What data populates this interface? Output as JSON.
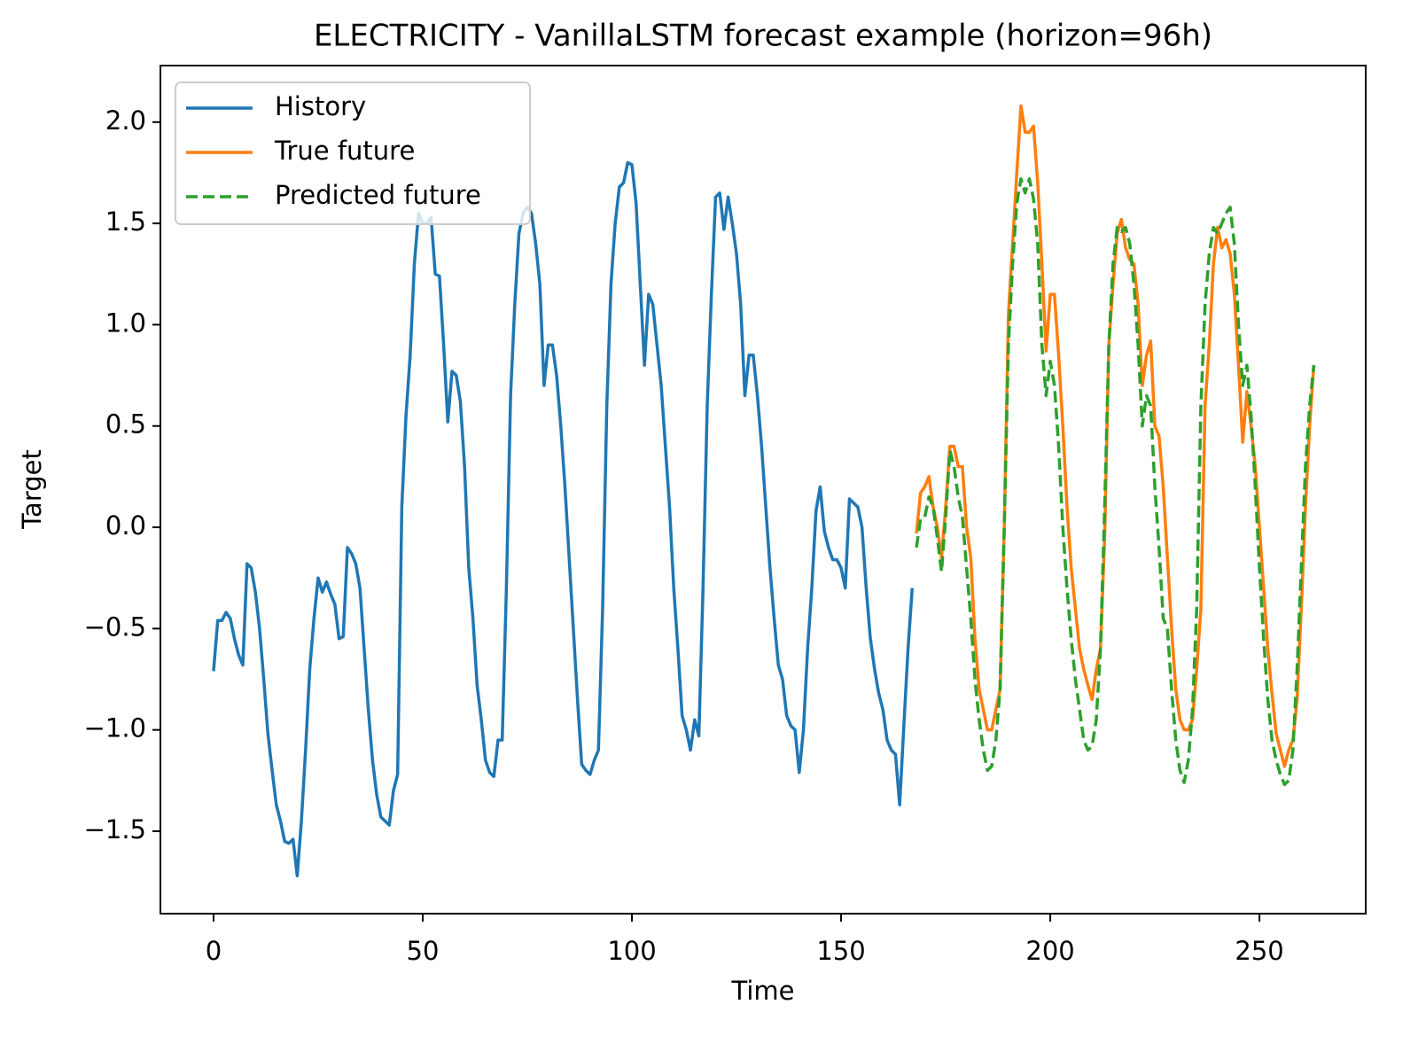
{
  "chart_data": {
    "type": "line",
    "title": "ELECTRICITY - VanillaLSTM forecast example (horizon=96h)",
    "x_label": "Time",
    "y_label": "Target",
    "xlim": [
      -12.7,
      275.4
    ],
    "ylim": [
      -1.907,
      2.279
    ],
    "xticks": [
      0,
      50,
      100,
      150,
      200,
      250
    ],
    "yticks": [
      {
        "value": -1.5,
        "label": "−1.5"
      },
      {
        "value": -1.0,
        "label": "−1.0"
      },
      {
        "value": -0.5,
        "label": "−0.5"
      },
      {
        "value": 0.0,
        "label": "0.0"
      },
      0.5,
      {
        "value": 1.0,
        "label": "1.0"
      },
      1.5,
      {
        "value": 2.0,
        "label": "2.0"
      }
    ],
    "grid": false,
    "legend": "upper left",
    "series": [
      {
        "name": "History",
        "color": "#1f77b4",
        "dash": "solid",
        "x": [
          0,
          1,
          2,
          3,
          4,
          5,
          6,
          7,
          8,
          9,
          10,
          11,
          12,
          13,
          14,
          15,
          16,
          17,
          18,
          19,
          20,
          21,
          22,
          23,
          24,
          25,
          26,
          27,
          28,
          29,
          30,
          31,
          32,
          33,
          34,
          35,
          36,
          37,
          38,
          39,
          40,
          41,
          42,
          43,
          44,
          45,
          46,
          47,
          48,
          49,
          50,
          51,
          52,
          53,
          54,
          55,
          56,
          57,
          58,
          59,
          60,
          61,
          62,
          63,
          64,
          65,
          66,
          67,
          68,
          69,
          70,
          71,
          72,
          73,
          74,
          75,
          76,
          77,
          78,
          79,
          80,
          81,
          82,
          83,
          84,
          85,
          86,
          87,
          88,
          89,
          90,
          91,
          92,
          93,
          94,
          95,
          96,
          97,
          98,
          99,
          100,
          101,
          102,
          103,
          104,
          105,
          106,
          107,
          108,
          109,
          110,
          111,
          112,
          113,
          114,
          115,
          116,
          117,
          118,
          119,
          120,
          121,
          122,
          123,
          124,
          125,
          126,
          127,
          128,
          129,
          130,
          131,
          132,
          133,
          134,
          135,
          136,
          137,
          138,
          139,
          140,
          141,
          142,
          143,
          144,
          145,
          146,
          147,
          148,
          149,
          150,
          151,
          152,
          153,
          154,
          155,
          156,
          157,
          158,
          159,
          160,
          161,
          162,
          163,
          164,
          165,
          166,
          167
        ],
        "values": [
          -0.71,
          -0.46,
          -0.46,
          -0.42,
          -0.45,
          -0.55,
          -0.63,
          -0.68,
          -0.18,
          -0.2,
          -0.32,
          -0.5,
          -0.75,
          -1.02,
          -1.2,
          -1.37,
          -1.45,
          -1.55,
          -1.56,
          -1.54,
          -1.72,
          -1.45,
          -1.1,
          -0.7,
          -0.45,
          -0.25,
          -0.32,
          -0.27,
          -0.33,
          -0.38,
          -0.55,
          -0.54,
          -0.1,
          -0.13,
          -0.18,
          -0.3,
          -0.6,
          -0.9,
          -1.15,
          -1.32,
          -1.43,
          -1.45,
          -1.47,
          -1.3,
          -1.22,
          0.1,
          0.55,
          0.85,
          1.3,
          1.55,
          1.5,
          1.5,
          1.53,
          1.25,
          1.24,
          0.9,
          0.52,
          0.77,
          0.75,
          0.62,
          0.3,
          -0.2,
          -0.45,
          -0.78,
          -0.95,
          -1.15,
          -1.21,
          -1.23,
          -1.05,
          -1.05,
          -0.3,
          0.65,
          1.1,
          1.45,
          1.55,
          1.58,
          1.55,
          1.4,
          1.2,
          0.7,
          0.9,
          0.9,
          0.75,
          0.5,
          0.2,
          -0.15,
          -0.5,
          -0.85,
          -1.17,
          -1.2,
          -1.22,
          -1.15,
          -1.1,
          -0.4,
          0.6,
          1.2,
          1.5,
          1.68,
          1.7,
          1.8,
          1.79,
          1.6,
          1.2,
          0.8,
          1.15,
          1.1,
          0.9,
          0.7,
          0.4,
          0.1,
          -0.3,
          -0.6,
          -0.93,
          -1.0,
          -1.1,
          -0.95,
          -1.03,
          -0.3,
          0.6,
          1.15,
          1.63,
          1.65,
          1.47,
          1.63,
          1.5,
          1.35,
          1.1,
          0.65,
          0.85,
          0.85,
          0.65,
          0.4,
          0.1,
          -0.2,
          -0.45,
          -0.68,
          -0.75,
          -0.93,
          -0.98,
          -1.0,
          -1.21,
          -1.0,
          -0.6,
          -0.3,
          0.08,
          0.2,
          -0.02,
          -0.1,
          -0.16,
          -0.16,
          -0.2,
          -0.3,
          0.14,
          0.12,
          0.1,
          0.0,
          -0.3,
          -0.55,
          -0.7,
          -0.82,
          -0.9,
          -1.05,
          -1.1,
          -1.12,
          -1.37,
          -0.98,
          -0.6,
          -0.3
        ]
      },
      {
        "name": "True future",
        "color": "#ff7f0e",
        "dash": "solid",
        "x": [
          168,
          169,
          170,
          171,
          172,
          173,
          174,
          175,
          176,
          177,
          178,
          179,
          180,
          181,
          182,
          183,
          184,
          185,
          186,
          187,
          188,
          189,
          190,
          191,
          192,
          193,
          194,
          195,
          196,
          197,
          198,
          199,
          200,
          201,
          202,
          203,
          204,
          205,
          206,
          207,
          208,
          209,
          210,
          211,
          212,
          213,
          214,
          215,
          216,
          217,
          218,
          219,
          220,
          221,
          222,
          223,
          224,
          225,
          226,
          227,
          228,
          229,
          230,
          231,
          232,
          233,
          234,
          235,
          236,
          237,
          238,
          239,
          240,
          241,
          242,
          243,
          244,
          245,
          246,
          247,
          248,
          249,
          250,
          251,
          252,
          253,
          254,
          255,
          256,
          257,
          258,
          259,
          260,
          261,
          262,
          263
        ],
        "values": [
          -0.03,
          0.17,
          0.2,
          0.25,
          0.1,
          0.0,
          -0.15,
          0.1,
          0.4,
          0.4,
          0.3,
          0.3,
          0.0,
          -0.15,
          -0.55,
          -0.8,
          -0.9,
          -1.0,
          -1.0,
          -0.9,
          -0.8,
          0.0,
          1.05,
          1.4,
          1.75,
          2.08,
          1.95,
          1.95,
          1.98,
          1.7,
          1.3,
          0.87,
          1.15,
          1.15,
          0.85,
          0.5,
          0.1,
          -0.2,
          -0.4,
          -0.6,
          -0.7,
          -0.78,
          -0.85,
          -0.7,
          -0.6,
          -0.05,
          0.9,
          1.2,
          1.45,
          1.52,
          1.38,
          1.32,
          1.3,
          1.1,
          0.7,
          0.85,
          0.92,
          0.5,
          0.45,
          0.2,
          -0.15,
          -0.5,
          -0.8,
          -0.95,
          -1.0,
          -1.0,
          -0.95,
          -0.7,
          -0.4,
          0.6,
          0.9,
          1.3,
          1.48,
          1.38,
          1.42,
          1.35,
          1.15,
          0.8,
          0.42,
          0.67,
          0.5,
          0.3,
          0.0,
          -0.3,
          -0.6,
          -0.82,
          -1.02,
          -1.1,
          -1.18,
          -1.1,
          -1.05,
          -0.85,
          -0.4,
          0.1,
          0.5,
          0.8
        ]
      },
      {
        "name": "Predicted future",
        "color": "#2ca02c",
        "dash": "dashed",
        "x": [
          168,
          169,
          170,
          171,
          172,
          173,
          174,
          175,
          176,
          177,
          178,
          179,
          180,
          181,
          182,
          183,
          184,
          185,
          186,
          187,
          188,
          189,
          190,
          191,
          192,
          193,
          194,
          195,
          196,
          197,
          198,
          199,
          200,
          201,
          202,
          203,
          204,
          205,
          206,
          207,
          208,
          209,
          210,
          211,
          212,
          213,
          214,
          215,
          216,
          217,
          218,
          219,
          220,
          221,
          222,
          223,
          224,
          225,
          226,
          227,
          228,
          229,
          230,
          231,
          232,
          233,
          234,
          235,
          236,
          237,
          238,
          239,
          240,
          241,
          242,
          243,
          244,
          245,
          246,
          247,
          248,
          249,
          250,
          251,
          252,
          253,
          254,
          255,
          256,
          257,
          258,
          259,
          260,
          261,
          262,
          263
        ],
        "values": [
          -0.1,
          0.04,
          0.05,
          0.15,
          0.1,
          -0.05,
          -0.22,
          0.05,
          0.38,
          0.3,
          0.15,
          0.05,
          -0.2,
          -0.45,
          -0.75,
          -0.95,
          -1.1,
          -1.2,
          -1.18,
          -1.05,
          -0.8,
          0.0,
          0.9,
          1.3,
          1.6,
          1.72,
          1.65,
          1.72,
          1.62,
          1.4,
          0.9,
          0.65,
          0.82,
          0.7,
          0.4,
          0.0,
          -0.3,
          -0.55,
          -0.75,
          -0.9,
          -1.05,
          -1.1,
          -1.08,
          -0.95,
          -0.6,
          0.1,
          0.9,
          1.3,
          1.48,
          1.46,
          1.48,
          1.4,
          1.2,
          0.9,
          0.5,
          0.65,
          0.6,
          0.2,
          -0.1,
          -0.45,
          -0.5,
          -0.8,
          -1.05,
          -1.2,
          -1.26,
          -1.15,
          -0.9,
          -0.4,
          0.6,
          1.1,
          1.35,
          1.48,
          1.45,
          1.5,
          1.55,
          1.58,
          1.4,
          1.0,
          0.7,
          0.8,
          0.55,
          0.2,
          -0.2,
          -0.55,
          -0.85,
          -1.05,
          -1.15,
          -1.22,
          -1.27,
          -1.25,
          -1.1,
          -0.7,
          -0.2,
          0.3,
          0.6,
          0.8
        ]
      }
    ]
  }
}
